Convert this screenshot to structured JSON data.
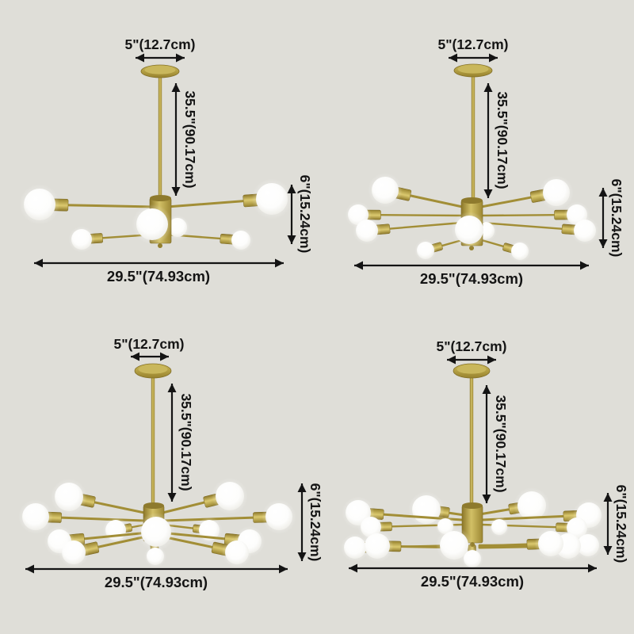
{
  "colors": {
    "background": "#dfded8",
    "ink": "#141414",
    "gold": "#b09a3f",
    "gold_dark": "#8c7729",
    "gold_light": "#dbc96f",
    "bulb": "#ffffff"
  },
  "panels": [
    {
      "name": "chandelier-6-light",
      "bulb_count": 6,
      "labels": {
        "canopy_width": "5\"(12.7cm)",
        "drop_height": "35.5\"(90.17cm)",
        "fixture_height": "6\"(15.24cm)",
        "fixture_width": "29.5\"(74.93cm)"
      }
    },
    {
      "name": "chandelier-10-light",
      "bulb_count": 10,
      "labels": {
        "canopy_width": "5\"(12.7cm)",
        "drop_height": "35.5\"(90.17cm)",
        "fixture_height": "6\"(15.24cm)",
        "fixture_width": "29.5\"(74.93cm)"
      }
    },
    {
      "name": "chandelier-12-light",
      "bulb_count": 12,
      "labels": {
        "canopy_width": "5\"(12.7cm)",
        "drop_height": "35.5\"(90.17cm)",
        "fixture_height": "6\"(15.24cm)",
        "fixture_width": "29.5\"(74.93cm)"
      }
    },
    {
      "name": "chandelier-15-light",
      "bulb_count": 15,
      "labels": {
        "canopy_width": "5\"(12.7cm)",
        "drop_height": "35.5\"(90.17cm)",
        "fixture_height": "6\"(15.24cm)",
        "fixture_width": "29.5\"(74.93cm)"
      }
    }
  ]
}
